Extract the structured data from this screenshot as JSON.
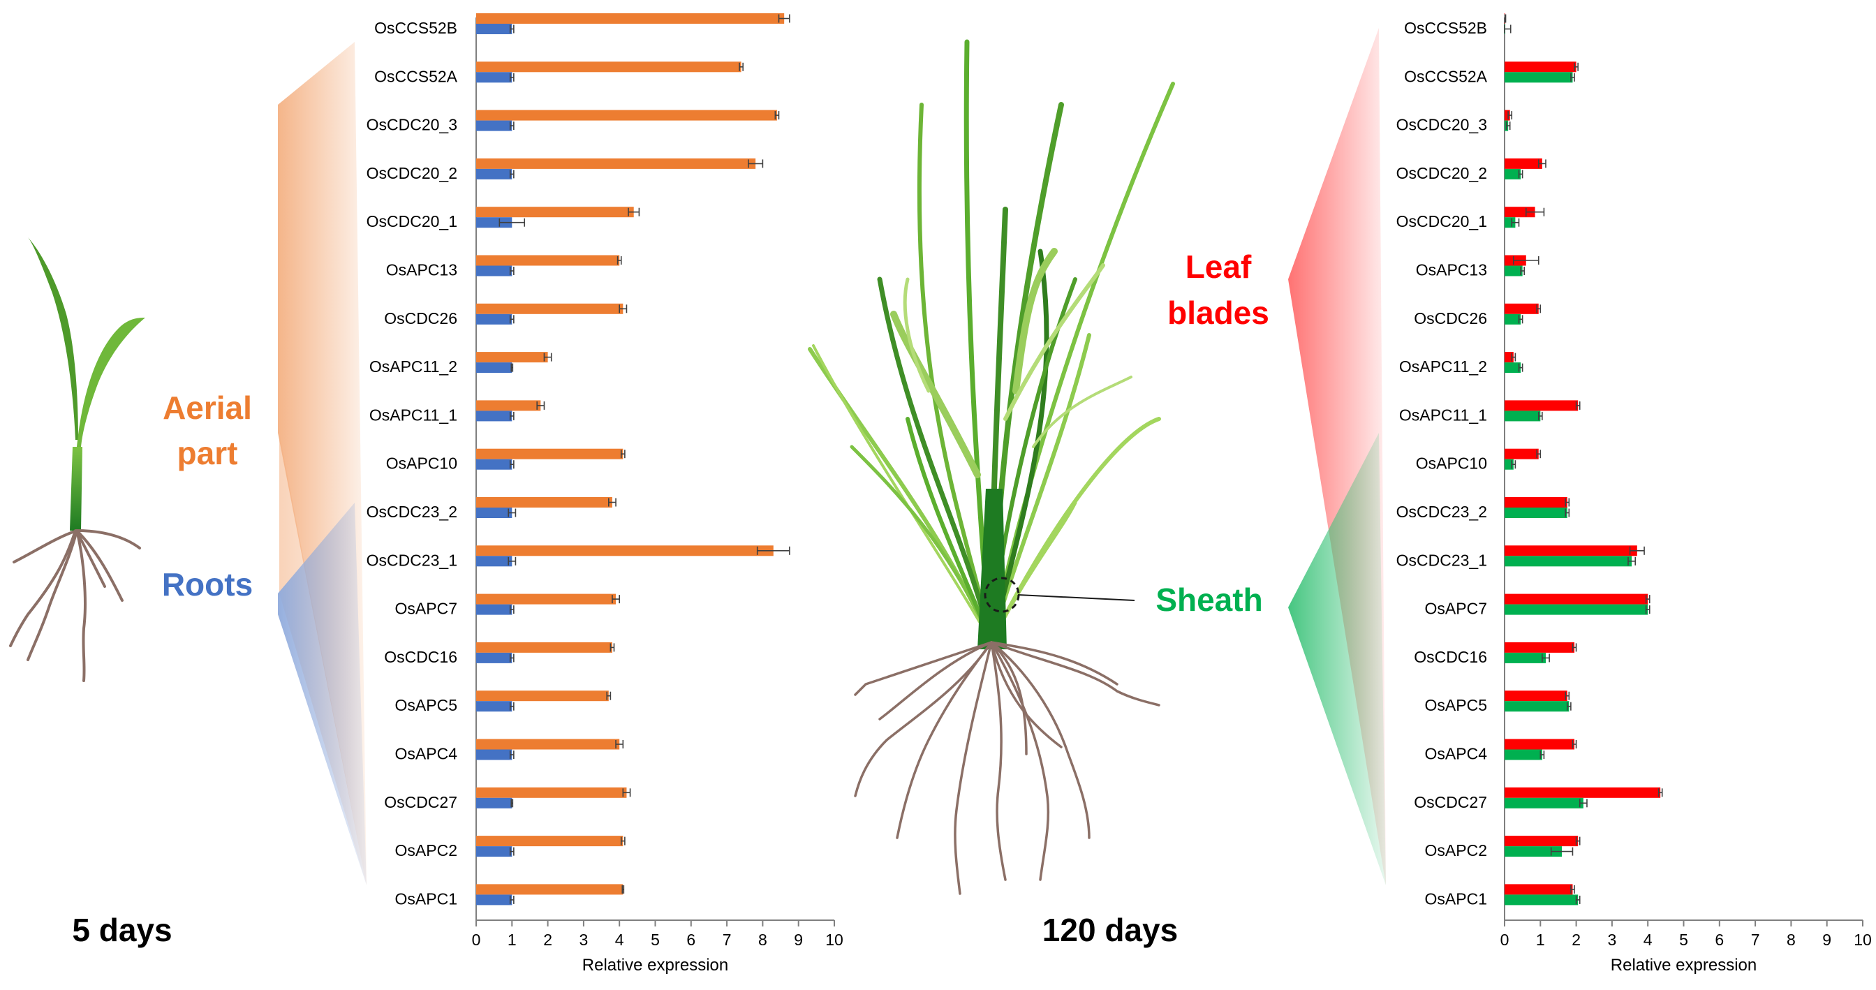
{
  "labels": {
    "seedling_age": "5 days",
    "adult_age": "120 days",
    "aerial": [
      "Aerial",
      "part"
    ],
    "roots": "Roots",
    "leaf": [
      "Leaf",
      "blades"
    ],
    "sheath": "Sheath"
  },
  "colors": {
    "aerial": "#ED7D31",
    "roots": "#4472C4",
    "leaf": "#FF0000",
    "sheath": "#00B050",
    "text": "#000000"
  },
  "chart_data": [
    {
      "type": "bar",
      "orientation": "horizontal",
      "xlabel": "Relative expression",
      "xlim": [
        0,
        10
      ],
      "xticks": [
        0,
        1,
        2,
        3,
        4,
        5,
        6,
        7,
        8,
        9,
        10
      ],
      "grid": false,
      "categories": [
        "OsCCS52B",
        "OsCCS52A",
        "OsCDC20_3",
        "OsCDC20_2",
        "OsCDC20_1",
        "OsAPC13",
        "OsCDC26",
        "OsAPC11_2",
        "OsAPC11_1",
        "OsAPC10",
        "OsCDC23_2",
        "OsCDC23_1",
        "OsAPC7",
        "OsCDC16",
        "OsAPC5",
        "OsAPC4",
        "OsCDC27",
        "OsAPC2",
        "OsAPC1"
      ],
      "series": [
        {
          "name": "Aerial part",
          "color": "#ED7D31",
          "values": [
            8.6,
            7.4,
            8.4,
            7.8,
            4.4,
            4.0,
            4.1,
            2.0,
            1.8,
            4.1,
            3.8,
            8.3,
            3.9,
            3.8,
            3.7,
            4.0,
            4.2,
            4.1,
            4.1
          ],
          "errors": [
            0.15,
            0.05,
            0.05,
            0.2,
            0.15,
            0.05,
            0.1,
            0.1,
            0.1,
            0.05,
            0.1,
            0.45,
            0.1,
            0.05,
            0.05,
            0.1,
            0.1,
            0.05,
            0.02
          ]
        },
        {
          "name": "Roots",
          "color": "#4472C4",
          "values": [
            1.0,
            1.0,
            1.0,
            1.0,
            1.0,
            1.0,
            1.0,
            1.0,
            1.0,
            1.0,
            1.0,
            1.0,
            1.0,
            1.0,
            1.0,
            1.0,
            1.0,
            1.0,
            1.0
          ],
          "errors": [
            0.05,
            0.05,
            0.05,
            0.05,
            0.35,
            0.05,
            0.05,
            0.02,
            0.05,
            0.05,
            0.1,
            0.1,
            0.05,
            0.05,
            0.05,
            0.05,
            0.02,
            0.05,
            0.05
          ]
        }
      ]
    },
    {
      "type": "bar",
      "orientation": "horizontal",
      "xlabel": "Relative expression",
      "xlim": [
        0,
        10
      ],
      "xticks": [
        0,
        1,
        2,
        3,
        4,
        5,
        6,
        7,
        8,
        9,
        10
      ],
      "grid": false,
      "categories": [
        "OsCCS52B",
        "OsCCS52A",
        "OsCDC20_3",
        "OsCDC20_2",
        "OsCDC20_1",
        "OsAPC13",
        "OsCDC26",
        "OsAPC11_2",
        "OsAPC11_1",
        "OsAPC10",
        "OsCDC23_2",
        "OsCDC23_1",
        "OsAPC7",
        "OsCDC16",
        "OsAPC5",
        "OsAPC4",
        "OsCDC27",
        "OsAPC2",
        "OsAPC1"
      ],
      "series": [
        {
          "name": "Leaf blades",
          "color": "#FF0000",
          "values": [
            0.02,
            2.0,
            0.15,
            1.05,
            0.85,
            0.6,
            0.95,
            0.25,
            2.05,
            0.95,
            1.75,
            3.7,
            4.0,
            1.95,
            1.75,
            1.95,
            4.35,
            2.05,
            1.9
          ],
          "errors": [
            0.01,
            0.05,
            0.05,
            0.1,
            0.25,
            0.35,
            0.05,
            0.05,
            0.05,
            0.05,
            0.05,
            0.2,
            0.05,
            0.05,
            0.05,
            0.05,
            0.05,
            0.05,
            0.05
          ]
        },
        {
          "name": "Sheath",
          "color": "#00B050",
          "values": [
            0.02,
            1.9,
            0.1,
            0.45,
            0.3,
            0.5,
            0.45,
            0.45,
            1.0,
            0.25,
            1.75,
            3.55,
            4.0,
            1.15,
            1.8,
            1.05,
            2.2,
            1.6,
            2.05
          ],
          "errors": [
            0.15,
            0.05,
            0.05,
            0.05,
            0.1,
            0.05,
            0.05,
            0.05,
            0.05,
            0.05,
            0.05,
            0.1,
            0.05,
            0.1,
            0.05,
            0.05,
            0.1,
            0.3,
            0.05
          ]
        }
      ]
    }
  ]
}
